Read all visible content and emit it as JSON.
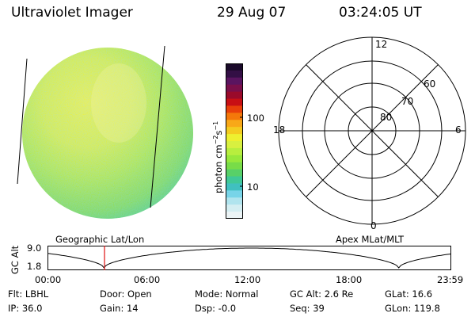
{
  "header": {
    "instrument": "Ultraviolet Imager",
    "date": "29 Aug 07",
    "time": "03:24:05 UT"
  },
  "colorbar": {
    "unit_label": "photon cm",
    "unit_exp1": "−2",
    "unit_s": "s",
    "unit_exp2": "−1",
    "tick_high": "100",
    "tick_low": "10",
    "colors": [
      "#1a0a2a",
      "#330f45",
      "#5a1460",
      "#7a0f4a",
      "#9a0a2a",
      "#c80f14",
      "#e8400a",
      "#f4780a",
      "#f8a818",
      "#f4cc20",
      "#eef030",
      "#d8f040",
      "#b8ee3e",
      "#98e83c",
      "#78dc48",
      "#58d068",
      "#40c898",
      "#40c0c0",
      "#78d4e8",
      "#b0e4ee",
      "#d4eef2",
      "#ecf4f6"
    ]
  },
  "polar": {
    "mlt_labels": {
      "top": "12",
      "bottom": "0",
      "left": "18",
      "right": "6"
    },
    "lat_labels": [
      "80",
      "70",
      "60"
    ]
  },
  "orbit": {
    "left_label": "Geographic Lat/Lon",
    "right_label": "Apex MLat/MLT",
    "axis_title": "GC Alt",
    "y_ticks": [
      "9.0",
      "1.8"
    ],
    "x_ticks": [
      "00:00",
      "06:00",
      "12:00",
      "18:00",
      "23:59"
    ],
    "marker_color": "#e01010"
  },
  "status": {
    "flt": "Flt: LBHL",
    "ip": "IP: 36.0",
    "door": "Door: Open",
    "gain": "Gain: 14",
    "mode": "Mode: Normal",
    "dsp": "Dsp:  -0.0",
    "gcalt": "GC Alt: 2.6 Re",
    "seq": "Seq: 39",
    "glat": "GLat: 16.6",
    "glon": "GLon: 119.8"
  }
}
